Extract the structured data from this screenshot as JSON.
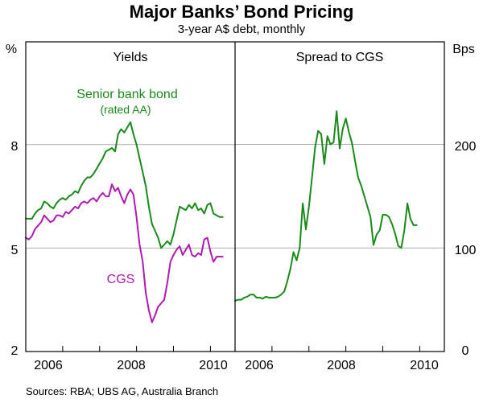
{
  "title": "Major Banks’ Bond Pricing",
  "subtitle": "3-year A$ debt, monthly",
  "source": "Sources: RBA; UBS AG, Australia Branch",
  "colors": {
    "green": "#1a8a1a",
    "purple": "#b01ab0",
    "grid": "#b0b0b0",
    "frame": "#000000"
  },
  "chart_data": [
    {
      "type": "line",
      "title": "Yields",
      "ylabel": "%",
      "y_ticks": [
        2,
        5,
        8
      ],
      "ylim": [
        2,
        10.98
      ],
      "xlim": [
        2005.0,
        2010.667
      ],
      "x_ticks": [
        "2006",
        "2008",
        "2010"
      ],
      "grid": true,
      "series": [
        {
          "name": "Senior bank bond (rated AA)",
          "label_lines": [
            "Senior bank bond",
            "(rated AA)"
          ],
          "color": "#1a8a1a",
          "points": [
            [
              2005.0,
              5.85
            ],
            [
              2005.083,
              5.85
            ],
            [
              2005.167,
              5.85
            ],
            [
              2005.25,
              6.0
            ],
            [
              2005.333,
              6.1
            ],
            [
              2005.417,
              6.15
            ],
            [
              2005.5,
              6.35
            ],
            [
              2005.583,
              6.3
            ],
            [
              2005.667,
              6.2
            ],
            [
              2005.75,
              6.15
            ],
            [
              2005.833,
              6.3
            ],
            [
              2005.917,
              6.4
            ],
            [
              2006.0,
              6.45
            ],
            [
              2006.083,
              6.4
            ],
            [
              2006.167,
              6.5
            ],
            [
              2006.25,
              6.55
            ],
            [
              2006.333,
              6.65
            ],
            [
              2006.417,
              6.6
            ],
            [
              2006.5,
              6.8
            ],
            [
              2006.583,
              6.95
            ],
            [
              2006.667,
              7.05
            ],
            [
              2006.75,
              7.05
            ],
            [
              2006.833,
              7.15
            ],
            [
              2006.917,
              7.3
            ],
            [
              2007.0,
              7.45
            ],
            [
              2007.083,
              7.6
            ],
            [
              2007.167,
              7.8
            ],
            [
              2007.25,
              7.85
            ],
            [
              2007.333,
              7.9
            ],
            [
              2007.417,
              7.8
            ],
            [
              2007.5,
              8.3
            ],
            [
              2007.583,
              8.45
            ],
            [
              2007.667,
              8.35
            ],
            [
              2007.75,
              8.5
            ],
            [
              2007.833,
              8.65
            ],
            [
              2007.917,
              8.3
            ],
            [
              2008.0,
              8.0
            ],
            [
              2008.083,
              7.6
            ],
            [
              2008.167,
              7.2
            ],
            [
              2008.25,
              6.8
            ],
            [
              2008.333,
              6.2
            ],
            [
              2008.417,
              5.7
            ],
            [
              2008.5,
              5.5
            ],
            [
              2008.583,
              5.3
            ],
            [
              2008.667,
              5.0
            ],
            [
              2008.75,
              5.1
            ],
            [
              2008.833,
              5.2
            ],
            [
              2008.917,
              5.1
            ],
            [
              2009.0,
              5.4
            ],
            [
              2009.083,
              5.8
            ],
            [
              2009.167,
              6.2
            ],
            [
              2009.25,
              6.15
            ],
            [
              2009.333,
              6.1
            ],
            [
              2009.417,
              6.25
            ],
            [
              2009.5,
              6.15
            ],
            [
              2009.583,
              6.3
            ],
            [
              2009.667,
              6.1
            ],
            [
              2009.75,
              6.15
            ],
            [
              2009.833,
              6.0
            ],
            [
              2009.917,
              6.25
            ],
            [
              2010.0,
              6.3
            ],
            [
              2010.083,
              6.0
            ],
            [
              2010.167,
              5.95
            ],
            [
              2010.25,
              5.9
            ],
            [
              2010.333,
              5.9
            ]
          ]
        },
        {
          "name": "CGS",
          "label_lines": [
            "CGS"
          ],
          "color": "#b01ab0",
          "points": [
            [
              2005.0,
              5.3
            ],
            [
              2005.083,
              5.25
            ],
            [
              2005.167,
              5.35
            ],
            [
              2005.25,
              5.55
            ],
            [
              2005.333,
              5.65
            ],
            [
              2005.417,
              5.75
            ],
            [
              2005.5,
              5.95
            ],
            [
              2005.583,
              5.85
            ],
            [
              2005.667,
              5.75
            ],
            [
              2005.75,
              5.8
            ],
            [
              2005.833,
              5.95
            ],
            [
              2005.917,
              5.95
            ],
            [
              2006.0,
              5.9
            ],
            [
              2006.083,
              6.05
            ],
            [
              2006.167,
              6.0
            ],
            [
              2006.25,
              6.1
            ],
            [
              2006.333,
              6.2
            ],
            [
              2006.417,
              6.15
            ],
            [
              2006.5,
              6.3
            ],
            [
              2006.583,
              6.35
            ],
            [
              2006.667,
              6.3
            ],
            [
              2006.75,
              6.4
            ],
            [
              2006.833,
              6.45
            ],
            [
              2006.917,
              6.35
            ],
            [
              2007.0,
              6.5
            ],
            [
              2007.083,
              6.6
            ],
            [
              2007.167,
              6.5
            ],
            [
              2007.25,
              6.5
            ],
            [
              2007.333,
              6.85
            ],
            [
              2007.417,
              6.65
            ],
            [
              2007.5,
              6.75
            ],
            [
              2007.583,
              6.5
            ],
            [
              2007.667,
              6.3
            ],
            [
              2007.75,
              6.55
            ],
            [
              2007.833,
              6.7
            ],
            [
              2007.917,
              6.55
            ],
            [
              2008.0,
              5.9
            ],
            [
              2008.083,
              5.1
            ],
            [
              2008.167,
              4.6
            ],
            [
              2008.25,
              3.7
            ],
            [
              2008.333,
              3.2
            ],
            [
              2008.417,
              2.85
            ],
            [
              2008.5,
              3.05
            ],
            [
              2008.583,
              3.3
            ],
            [
              2008.667,
              3.4
            ],
            [
              2008.75,
              3.5
            ],
            [
              2008.833,
              4.0
            ],
            [
              2008.917,
              4.6
            ],
            [
              2009.0,
              4.8
            ],
            [
              2009.083,
              4.95
            ],
            [
              2009.167,
              5.05
            ],
            [
              2009.25,
              4.8
            ],
            [
              2009.333,
              4.95
            ],
            [
              2009.417,
              5.1
            ],
            [
              2009.5,
              4.8
            ],
            [
              2009.583,
              4.75
            ],
            [
              2009.667,
              4.85
            ],
            [
              2009.75,
              4.8
            ],
            [
              2009.833,
              5.25
            ],
            [
              2009.917,
              5.3
            ],
            [
              2010.0,
              4.9
            ],
            [
              2010.083,
              4.6
            ],
            [
              2010.167,
              4.75
            ],
            [
              2010.25,
              4.75
            ],
            [
              2010.333,
              4.75
            ]
          ]
        }
      ]
    },
    {
      "type": "line",
      "title": "Spread to CGS",
      "ylabel": "Bps",
      "y_ticks": [
        0,
        100,
        200
      ],
      "ylim": [
        0,
        299
      ],
      "xlim": [
        2005.0,
        2010.667
      ],
      "x_ticks": [
        "2006",
        "2008",
        "2010"
      ],
      "grid": true,
      "series": [
        {
          "color": "#1a8a1a",
          "points": [
            [
              2005.0,
              49
            ],
            [
              2005.083,
              50
            ],
            [
              2005.167,
              50
            ],
            [
              2005.25,
              52
            ],
            [
              2005.333,
              53
            ],
            [
              2005.417,
              55
            ],
            [
              2005.5,
              55
            ],
            [
              2005.583,
              52
            ],
            [
              2005.667,
              52
            ],
            [
              2005.75,
              51
            ],
            [
              2005.833,
              53
            ],
            [
              2005.917,
              52
            ],
            [
              2006.0,
              52
            ],
            [
              2006.083,
              52
            ],
            [
              2006.167,
              53
            ],
            [
              2006.25,
              55
            ],
            [
              2006.333,
              58
            ],
            [
              2006.417,
              68
            ],
            [
              2006.5,
              80
            ],
            [
              2006.583,
              96
            ],
            [
              2006.667,
              88
            ],
            [
              2006.75,
              100
            ],
            [
              2006.833,
              143
            ],
            [
              2006.917,
              118
            ],
            [
              2007.0,
              140
            ],
            [
              2007.083,
              168
            ],
            [
              2007.167,
              197
            ],
            [
              2007.25,
              213
            ],
            [
              2007.333,
              210
            ],
            [
              2007.417,
              181
            ],
            [
              2007.5,
              208
            ],
            [
              2007.583,
              200
            ],
            [
              2007.667,
              202
            ],
            [
              2007.75,
              232
            ],
            [
              2007.833,
              196
            ],
            [
              2007.917,
              215
            ],
            [
              2008.0,
              225
            ],
            [
              2008.083,
              212
            ],
            [
              2008.167,
              201
            ],
            [
              2008.25,
              184
            ],
            [
              2008.333,
              168
            ],
            [
              2008.417,
              160
            ],
            [
              2008.5,
              150
            ],
            [
              2008.583,
              140
            ],
            [
              2008.667,
              130
            ],
            [
              2008.75,
              103
            ],
            [
              2008.833,
              113
            ],
            [
              2008.917,
              117
            ],
            [
              2009.0,
              132
            ],
            [
              2009.083,
              132
            ],
            [
              2009.167,
              130
            ],
            [
              2009.25,
              123
            ],
            [
              2009.333,
              114
            ],
            [
              2009.417,
              102
            ],
            [
              2009.5,
              100
            ],
            [
              2009.583,
              117
            ],
            [
              2009.667,
              143
            ],
            [
              2009.75,
              128
            ],
            [
              2009.833,
              122
            ],
            [
              2009.917,
              122
            ]
          ]
        }
      ]
    }
  ]
}
